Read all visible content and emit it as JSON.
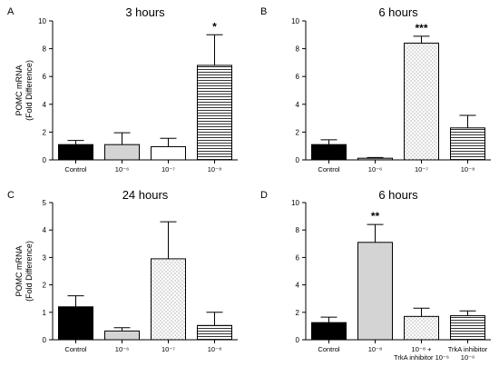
{
  "chart_data": [
    {
      "type": "bar",
      "panel": "A",
      "title": "3 hours",
      "ylabel": "POMC mRNA",
      "ylabel2": "(Fold Difference)",
      "ylim": [
        0,
        10
      ],
      "yticks": [
        "0",
        "2",
        "4",
        "6",
        "8",
        "10"
      ],
      "categories": [
        [
          "Control"
        ],
        [
          "10⁻⁶"
        ],
        [
          "10⁻⁷"
        ],
        [
          "10⁻⁸"
        ]
      ],
      "values": [
        1.1,
        1.1,
        0.95,
        6.8
      ],
      "errors": [
        0.3,
        0.85,
        0.6,
        2.2
      ],
      "fills": [
        "black",
        "gray",
        "white",
        "hlines"
      ],
      "significance": [
        "",
        "",
        "",
        "*"
      ]
    },
    {
      "type": "bar",
      "panel": "B",
      "title": "6 hours",
      "ylabel": "",
      "ylabel2": "",
      "ylim": [
        0,
        10
      ],
      "yticks": [
        "0",
        "2",
        "4",
        "6",
        "8",
        "10"
      ],
      "categories": [
        [
          "Control"
        ],
        [
          "10⁻⁶"
        ],
        [
          "10⁻⁷"
        ],
        [
          "10⁻⁸"
        ]
      ],
      "values": [
        1.1,
        0.12,
        8.4,
        2.3
      ],
      "errors": [
        0.35,
        0.05,
        0.5,
        0.9
      ],
      "fills": [
        "black",
        "gray",
        "dots",
        "hlines"
      ],
      "significance": [
        "",
        "",
        "***",
        ""
      ]
    },
    {
      "type": "bar",
      "panel": "C",
      "title": "24 hours",
      "ylabel": "POMC mRNA",
      "ylabel2": "(Fold Difference)",
      "ylim": [
        0,
        5
      ],
      "yticks": [
        "0",
        "1",
        "2",
        "3",
        "4",
        "5"
      ],
      "categories": [
        [
          "Control"
        ],
        [
          "10⁻⁶"
        ],
        [
          "10⁻⁷"
        ],
        [
          "10⁻⁸"
        ]
      ],
      "values": [
        1.2,
        0.32,
        2.95,
        0.52
      ],
      "errors": [
        0.4,
        0.12,
        1.35,
        0.48
      ],
      "fills": [
        "black",
        "gray",
        "dots",
        "hlines"
      ],
      "significance": [
        "",
        "",
        "",
        ""
      ]
    },
    {
      "type": "bar",
      "panel": "D",
      "title": "6 hours",
      "ylabel": "",
      "ylabel2": "",
      "ylim": [
        0,
        10
      ],
      "yticks": [
        "0",
        "2",
        "4",
        "6",
        "8",
        "10"
      ],
      "categories": [
        [
          "Control"
        ],
        [
          "10⁻⁸"
        ],
        [
          "10⁻⁸ +",
          "TrkA inhibitor 10⁻⁶"
        ],
        [
          "TrkA inhibitor",
          "10⁻⁶"
        ]
      ],
      "values": [
        1.25,
        7.1,
        1.7,
        1.75
      ],
      "errors": [
        0.4,
        1.3,
        0.6,
        0.35
      ],
      "fills": [
        "black",
        "gray",
        "dots",
        "hlines"
      ],
      "significance": [
        "",
        "**",
        "",
        ""
      ]
    }
  ]
}
